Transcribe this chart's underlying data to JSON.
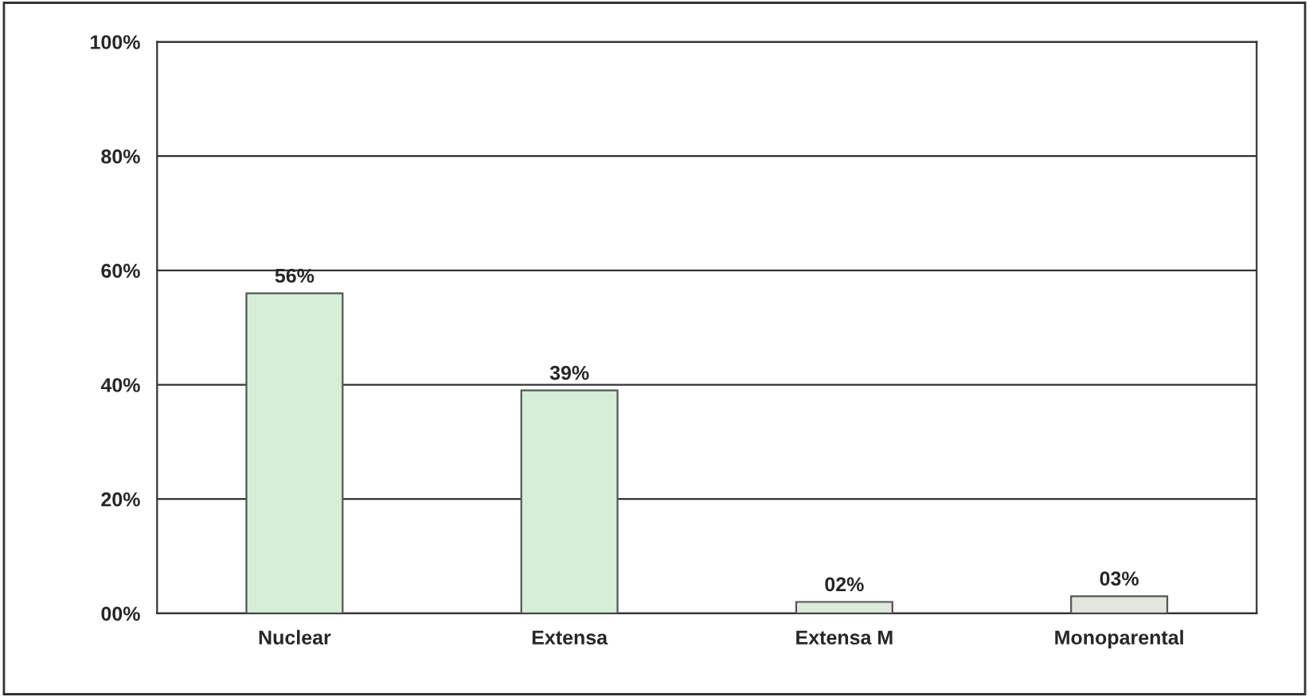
{
  "chart_data": {
    "type": "bar",
    "categories": [
      "Nuclear",
      "Extensa",
      "Extensa M",
      "Monoparental"
    ],
    "values": [
      56,
      39,
      2,
      3
    ],
    "value_labels": [
      "56%",
      "39%",
      "02%",
      "03%"
    ],
    "colors": [
      "#d4efd6",
      "#d4efd6",
      "#dfe9dc",
      "#e2e6df"
    ],
    "ylim": [
      0,
      100
    ],
    "yticks": [
      {
        "value": 0,
        "label": "00%"
      },
      {
        "value": 20,
        "label": "20%"
      },
      {
        "value": 40,
        "label": "40%"
      },
      {
        "value": 60,
        "label": "60%"
      },
      {
        "value": 80,
        "label": "80%"
      },
      {
        "value": 100,
        "label": "100%"
      }
    ],
    "grid": "y"
  }
}
